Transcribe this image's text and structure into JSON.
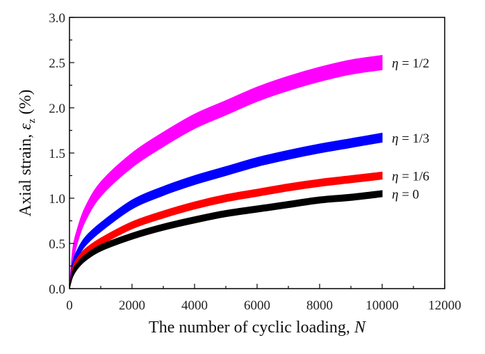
{
  "chart_data": {
    "type": "line",
    "title": "",
    "xlabel": "The number of cyclic loading, ",
    "xlabel_var": "N",
    "ylabel": "Axial strain, ",
    "ylabel_var": "ε",
    "ylabel_sub": "z",
    "ylabel_unit": " (%)",
    "xlim": [
      0,
      12000
    ],
    "ylim": [
      0,
      3.0
    ],
    "xticks": [
      0,
      2000,
      4000,
      6000,
      8000,
      10000,
      12000
    ],
    "yticks": [
      "0.0",
      "0.5",
      "1.0",
      "1.5",
      "2.0",
      "2.5",
      "3.0"
    ],
    "grid": false,
    "legend": "inline labels at right end of curves",
    "x": [
      0,
      100,
      250,
      500,
      1000,
      2000,
      3000,
      4000,
      5000,
      6000,
      7000,
      8000,
      9000,
      10000
    ],
    "series": [
      {
        "name": "η = 1/2",
        "var": "η",
        "label_value": " = 1/2",
        "color": "#ff00ff",
        "band": 0.16,
        "values": [
          0,
          0.35,
          0.58,
          0.82,
          1.1,
          1.42,
          1.65,
          1.85,
          2.0,
          2.15,
          2.27,
          2.37,
          2.45,
          2.5
        ]
      },
      {
        "name": "η = 1/3",
        "var": "η",
        "label_value": " = 1/3",
        "color": "#0000ff",
        "band": 0.1,
        "values": [
          0,
          0.24,
          0.38,
          0.52,
          0.68,
          0.93,
          1.08,
          1.2,
          1.3,
          1.4,
          1.48,
          1.55,
          1.61,
          1.67
        ]
      },
      {
        "name": "η = 1/6",
        "var": "η",
        "label_value": " = 1/6",
        "color": "#ff0000",
        "band": 0.08,
        "values": [
          0,
          0.19,
          0.3,
          0.4,
          0.52,
          0.7,
          0.82,
          0.92,
          1.0,
          1.06,
          1.12,
          1.17,
          1.21,
          1.25
        ]
      },
      {
        "name": "η = 0",
        "var": "η",
        "label_value": " = 0",
        "color": "#000000",
        "band": 0.07,
        "values": [
          0,
          0.16,
          0.25,
          0.34,
          0.45,
          0.58,
          0.68,
          0.76,
          0.83,
          0.88,
          0.93,
          0.98,
          1.01,
          1.05
        ]
      }
    ]
  }
}
